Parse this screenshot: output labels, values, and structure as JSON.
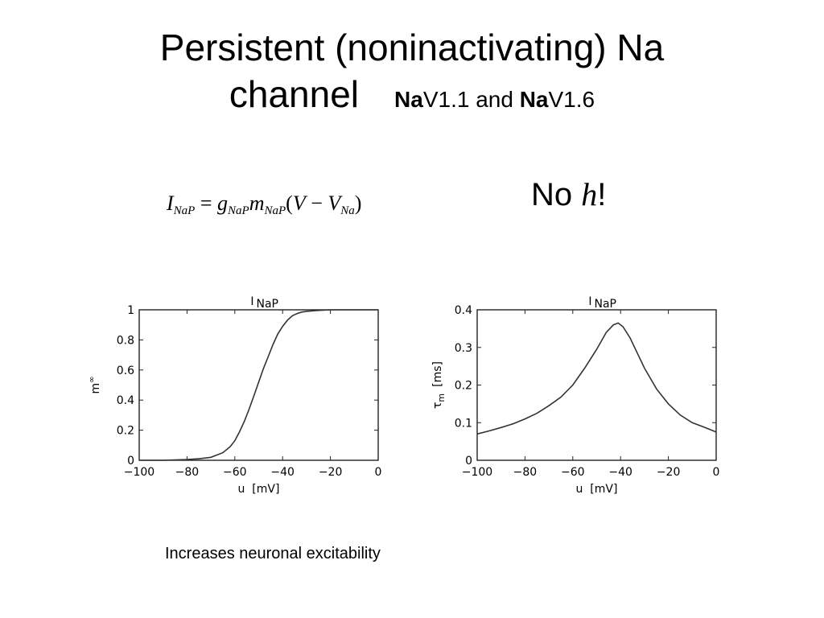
{
  "slide": {
    "title_line1": "Persistent (noninactivating) Na",
    "title_line2": "channel",
    "subtitle_bold1": "Na",
    "subtitle_text1": "V1.1 and ",
    "subtitle_bold2": "Na",
    "subtitle_text2": "V1.6",
    "no_h_prefix": "No ",
    "no_h_var": "h",
    "no_h_suffix": "!",
    "caption": "Increases neuronal excitability"
  },
  "equation": {
    "I": "I",
    "I_sub": "NaP",
    "eq": " = ",
    "g": "g",
    "g_sub": "NaP",
    "m": "m",
    "m_sub": "NaP",
    "open": "(",
    "V": "V",
    "minus": " − ",
    "V2": "V",
    "V2_sub": "Na",
    "close": ")"
  },
  "chart_data": [
    {
      "type": "line",
      "title": "I",
      "title_sub": "NaP",
      "xlabel": "u  [mV]",
      "ylabel": "m",
      "ylabel_sup": "∞",
      "xlim": [
        -100,
        0
      ],
      "ylim": [
        0,
        1
      ],
      "xticks": [
        -100,
        -80,
        -60,
        -40,
        -20,
        0
      ],
      "yticks": [
        0,
        0.2,
        0.4,
        0.6,
        0.8,
        1
      ],
      "ytick_labels": [
        "0",
        "0.2",
        "0.4",
        "0.6",
        "0.8",
        "1"
      ],
      "grid": false,
      "series": [
        {
          "x": [
            -100,
            -90,
            -80,
            -75,
            -70,
            -65,
            -62,
            -60,
            -58,
            -56,
            -54,
            -52,
            -50,
            -48,
            -46,
            -44,
            -42,
            -40,
            -38,
            -36,
            -34,
            -32,
            -30,
            -26,
            -20,
            -10,
            0
          ],
          "values": [
            0.0,
            0.0,
            0.005,
            0.01,
            0.02,
            0.05,
            0.09,
            0.13,
            0.19,
            0.26,
            0.34,
            0.43,
            0.52,
            0.61,
            0.69,
            0.77,
            0.84,
            0.89,
            0.93,
            0.96,
            0.975,
            0.985,
            0.99,
            0.995,
            1.0,
            1.0,
            1.0
          ]
        }
      ]
    },
    {
      "type": "line",
      "title": "I",
      "title_sub": "NaP",
      "xlabel": "u  [mV]",
      "ylabel": "τ",
      "ylabel_sub": "m",
      "ylabel_unit": "[ms]",
      "xlim": [
        -100,
        0
      ],
      "ylim": [
        0,
        0.4
      ],
      "xticks": [
        -100,
        -80,
        -60,
        -40,
        -20,
        0
      ],
      "yticks": [
        0,
        0.1,
        0.2,
        0.3,
        0.4
      ],
      "ytick_labels": [
        "0",
        "0.1",
        "0.2",
        "0.3",
        "0.4"
      ],
      "grid": false,
      "series": [
        {
          "x": [
            -100,
            -95,
            -90,
            -85,
            -80,
            -75,
            -70,
            -65,
            -60,
            -55,
            -50,
            -46,
            -43,
            -41,
            -39,
            -36,
            -33,
            -30,
            -25,
            -20,
            -15,
            -10,
            -5,
            0
          ],
          "values": [
            0.07,
            0.078,
            0.087,
            0.097,
            0.11,
            0.125,
            0.145,
            0.168,
            0.2,
            0.245,
            0.295,
            0.34,
            0.36,
            0.365,
            0.355,
            0.325,
            0.285,
            0.245,
            0.19,
            0.15,
            0.12,
            0.1,
            0.088,
            0.075
          ]
        }
      ]
    }
  ]
}
